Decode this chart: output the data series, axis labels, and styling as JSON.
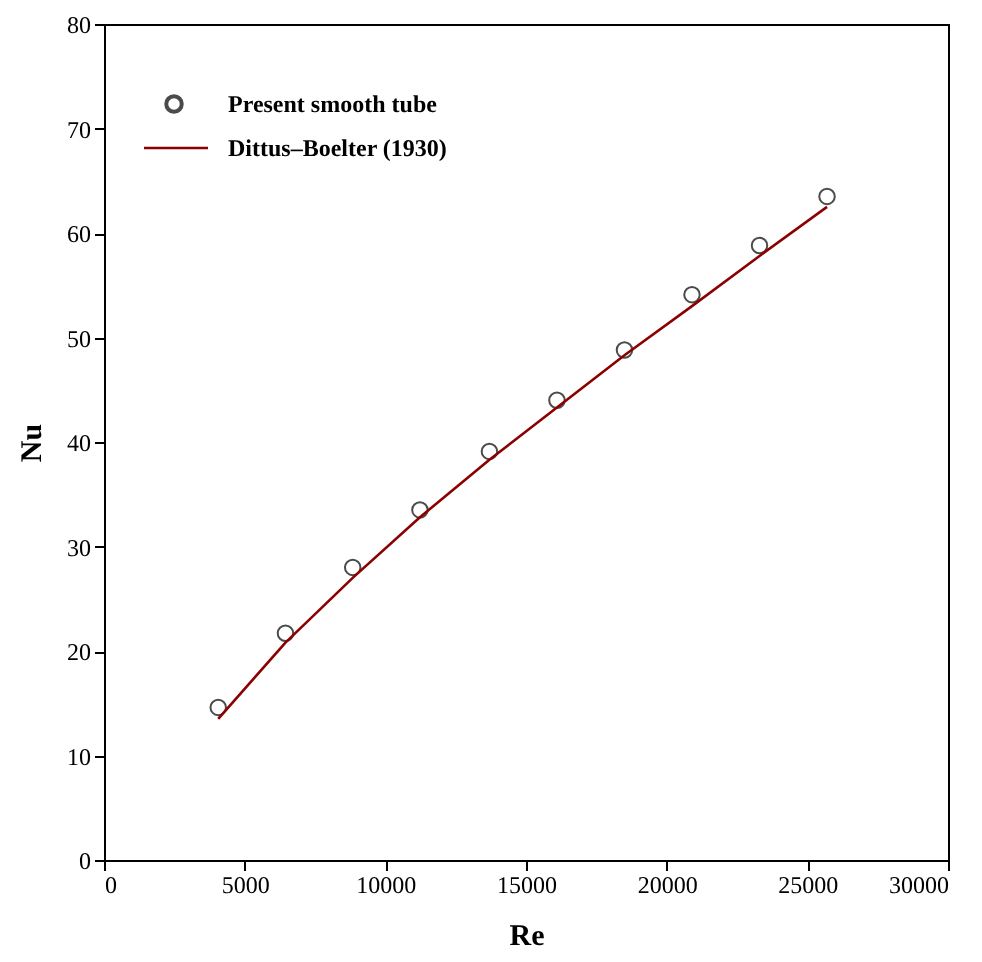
{
  "chart_data": {
    "type": "scatter",
    "xlabel": "Re",
    "ylabel": "Nu",
    "xlim": [
      0,
      30000
    ],
    "ylim": [
      0,
      80
    ],
    "xticks": [
      0,
      5000,
      10000,
      15000,
      20000,
      25000,
      30000
    ],
    "yticks": [
      0,
      10,
      20,
      30,
      40,
      50,
      60,
      70,
      80
    ],
    "grid": false,
    "legend": "top left",
    "series": [
      {
        "name": "Present smooth tube",
        "marker": "circle",
        "color": "#000000",
        "x": [
          4060,
          6450,
          8840,
          11230,
          13700,
          16100,
          18500,
          20900,
          23300,
          25700
        ],
        "values": [
          14.6,
          21.7,
          28.0,
          33.5,
          39.1,
          44.0,
          48.8,
          54.1,
          58.8,
          63.5
        ]
      },
      {
        "name": "Dittus–Boelter (1930)",
        "type": "line",
        "line_style": "solid",
        "color": "#8b0000",
        "x": [
          4060,
          6450,
          8840,
          11230,
          13700,
          16100,
          18500,
          20900,
          23300,
          25700
        ],
        "values": [
          13.5,
          20.8,
          27.0,
          32.8,
          38.3,
          43.3,
          48.3,
          53.0,
          57.8,
          62.5
        ]
      }
    ]
  }
}
